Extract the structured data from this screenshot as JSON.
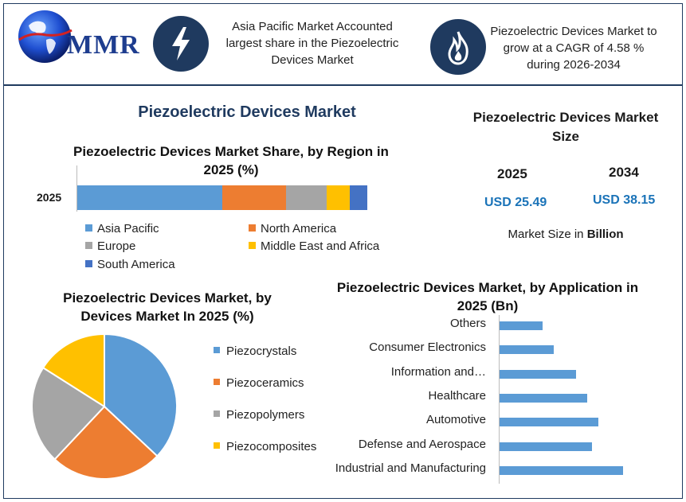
{
  "header": {
    "logo_text": "MMR",
    "headline_1": "Asia Pacific Market Accounted largest share in the Piezoelectric Devices Market",
    "headline_2": "Piezoelectric Devices Market to grow at a CAGR of 4.58 % during 2026-2034",
    "icon_1": "lightning-bolt-icon",
    "icon_2": "flame-icon"
  },
  "main_title": "Piezoelectric Devices Market",
  "market_size": {
    "title": "Piezoelectric Devices Market Size",
    "year_1": "2025",
    "year_2": "2034",
    "value_1": "USD 25.49",
    "value_2": "USD 38.15",
    "unit_prefix": "Market Size in ",
    "unit_bold": "Billion"
  },
  "chart_data": [
    {
      "type": "bar",
      "orientation": "horizontal-stacked",
      "title": "Piezoelectric Devices Market Share, by Region in 2025 (%)",
      "categories": [
        "2025"
      ],
      "series": [
        {
          "name": "Asia Pacific",
          "values": [
            50
          ],
          "color": "#5b9bd5"
        },
        {
          "name": "North America",
          "values": [
            22
          ],
          "color": "#ed7d31"
        },
        {
          "name": "Europe",
          "values": [
            14
          ],
          "color": "#a5a5a5"
        },
        {
          "name": "Middle East and Africa",
          "values": [
            8
          ],
          "color": "#ffc000"
        },
        {
          "name": "South America",
          "values": [
            6
          ],
          "color": "#4472c4"
        }
      ],
      "legend": "bottom"
    },
    {
      "type": "pie",
      "title": "Piezoelectric Devices Market, by Devices Market In 2025 (%)",
      "labels": [
        "Piezocrystals",
        "Piezoceramics",
        "Piezopolymers",
        "Piezocomposites"
      ],
      "values": [
        37,
        25,
        22,
        16
      ],
      "colors": [
        "#5b9bd5",
        "#ed7d31",
        "#a5a5a5",
        "#ffc000"
      ],
      "legend": "right"
    },
    {
      "type": "bar",
      "orientation": "horizontal",
      "title": "Piezoelectric Devices Market, by Application in 2025 (Bn)",
      "categories": [
        "Others",
        "Consumer Electronics",
        "Information and…",
        "Healthcare",
        "Automotive",
        "Defense and Aerospace",
        "Industrial and Manufacturing"
      ],
      "values": [
        1.9,
        2.4,
        3.4,
        3.9,
        4.4,
        4.1,
        5.5
      ],
      "color": "#5b9bd5",
      "xlim": [
        0,
        8
      ]
    }
  ]
}
